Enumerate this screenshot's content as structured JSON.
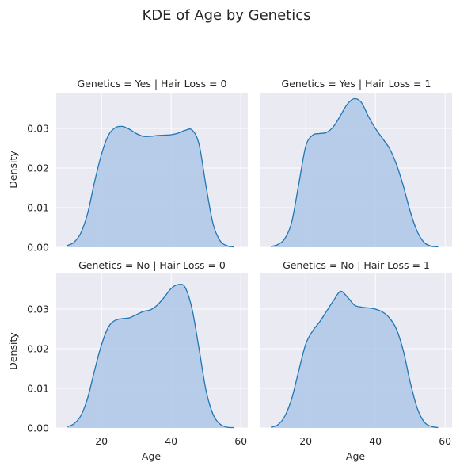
{
  "chart_data": {
    "type": "area",
    "title": "KDE of Age by Genetics",
    "xlabel": "Age",
    "ylabel": "Density",
    "xlim": [
      7,
      62
    ],
    "ylim": [
      0,
      0.039
    ],
    "xticks": [
      20,
      40,
      60
    ],
    "xtick_labels": [
      "20",
      "40",
      "60"
    ],
    "yticks": [
      0,
      0.01,
      0.02,
      0.03
    ],
    "ytick_labels": [
      "0.00",
      "0.01",
      "0.02",
      "0.03"
    ],
    "grid": true,
    "fill_color": "#aec7e8",
    "line_color": "#1f77b4",
    "background": "#eaeaf2",
    "panels": [
      {
        "title": "Genetics = Yes | Hair Loss = 0",
        "x": [
          10,
          12,
          14,
          16,
          18,
          20,
          22,
          24,
          26,
          28,
          30,
          32,
          34,
          36,
          38,
          40,
          42,
          44,
          46,
          48,
          50,
          52,
          54,
          56,
          58
        ],
        "y": [
          0.0004,
          0.0012,
          0.0035,
          0.0085,
          0.0165,
          0.0235,
          0.0283,
          0.0302,
          0.0305,
          0.0298,
          0.0287,
          0.028,
          0.028,
          0.0282,
          0.0283,
          0.0284,
          0.0288,
          0.0295,
          0.0296,
          0.026,
          0.0155,
          0.006,
          0.0017,
          0.0004,
          0.0001
        ]
      },
      {
        "title": "Genetics = Yes | Hair Loss = 1",
        "x": [
          10,
          12,
          14,
          16,
          18,
          20,
          22,
          24,
          26,
          28,
          30,
          32,
          34,
          36,
          38,
          40,
          42,
          44,
          46,
          48,
          50,
          52,
          54,
          56,
          58
        ],
        "y": [
          0.0002,
          0.0007,
          0.0022,
          0.0065,
          0.016,
          0.0255,
          0.0283,
          0.0287,
          0.029,
          0.0305,
          0.0333,
          0.0362,
          0.0375,
          0.0365,
          0.033,
          0.03,
          0.0275,
          0.025,
          0.021,
          0.0155,
          0.009,
          0.004,
          0.0012,
          0.0003,
          0.0001
        ]
      },
      {
        "title": "Genetics = No | Hair Loss = 0",
        "x": [
          10,
          12,
          14,
          16,
          18,
          20,
          22,
          24,
          26,
          28,
          30,
          32,
          34,
          36,
          38,
          40,
          42,
          44,
          46,
          48,
          50,
          52,
          54,
          56,
          58
        ],
        "y": [
          0.0003,
          0.001,
          0.003,
          0.0075,
          0.0145,
          0.021,
          0.0255,
          0.0272,
          0.0276,
          0.0278,
          0.0286,
          0.0294,
          0.0298,
          0.031,
          0.033,
          0.0352,
          0.0362,
          0.0355,
          0.03,
          0.02,
          0.0095,
          0.0035,
          0.001,
          0.0002,
          0.0001
        ]
      },
      {
        "title": "Genetics = No | Hair Loss = 1",
        "x": [
          10,
          12,
          14,
          16,
          18,
          20,
          22,
          24,
          26,
          28,
          30,
          32,
          34,
          36,
          38,
          40,
          42,
          44,
          46,
          48,
          50,
          52,
          54,
          56,
          58
        ],
        "y": [
          0.0002,
          0.0008,
          0.003,
          0.0075,
          0.0145,
          0.0212,
          0.0245,
          0.0268,
          0.0295,
          0.0322,
          0.0345,
          0.033,
          0.031,
          0.0305,
          0.0303,
          0.03,
          0.0293,
          0.0278,
          0.025,
          0.0195,
          0.0115,
          0.005,
          0.0015,
          0.0004,
          0.0001
        ]
      }
    ]
  }
}
